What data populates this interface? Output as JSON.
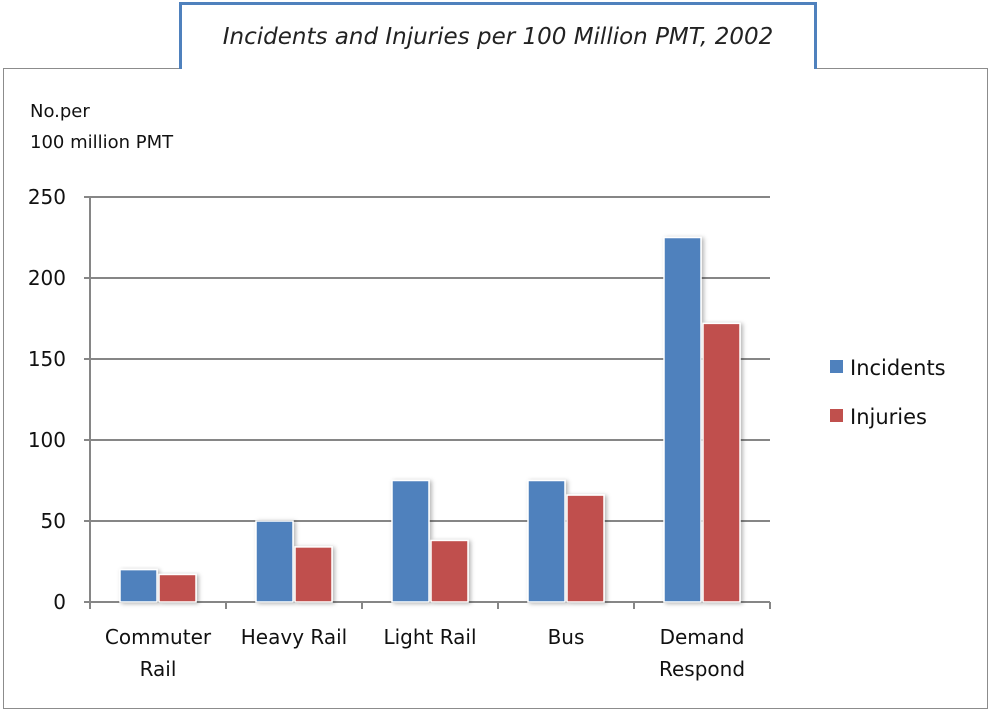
{
  "chart_data": {
    "type": "bar",
    "title": "Incidents and Injuries per 100 Million PMT, 2002",
    "ylabel_lines": [
      "No.per",
      "100 million PMT"
    ],
    "xlabel": "",
    "categories": [
      [
        "Commuter",
        "Rail"
      ],
      [
        "Heavy Rail"
      ],
      [
        "Light Rail"
      ],
      [
        "Bus"
      ],
      [
        "Demand",
        "Respond"
      ]
    ],
    "series": [
      {
        "name": "Incidents",
        "color": "#4f81bd",
        "values": [
          20,
          50,
          75,
          75,
          225
        ]
      },
      {
        "name": "Injuries",
        "color": "#c0504d",
        "values": [
          17,
          34,
          38,
          66,
          172
        ]
      }
    ],
    "ylim": [
      0,
      250
    ],
    "yticks": [
      0,
      50,
      100,
      150,
      200,
      250
    ],
    "grid": true,
    "legend": "right"
  }
}
